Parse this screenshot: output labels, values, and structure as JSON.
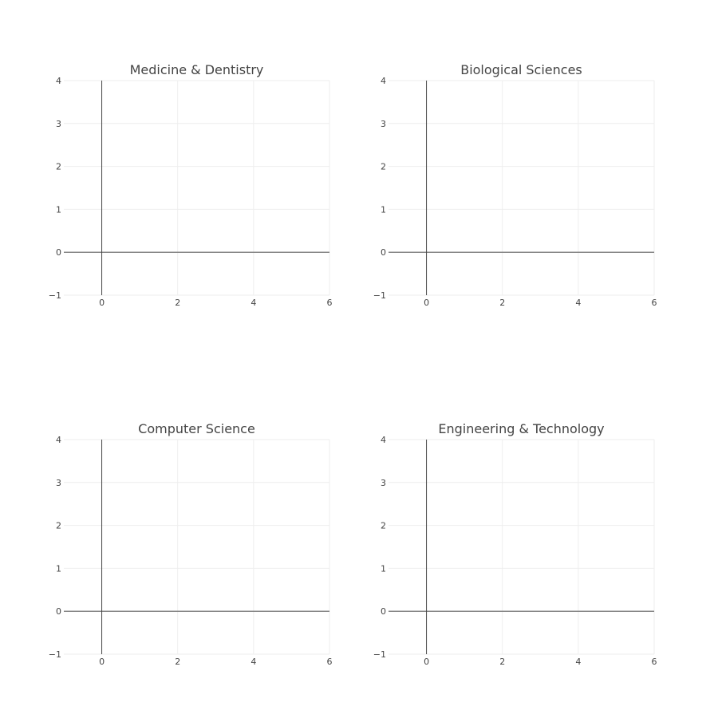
{
  "chart_data": [
    {
      "type": "scatter",
      "title": "Medicine & Dentistry",
      "xlabel": "",
      "ylabel": "",
      "xlim": [
        -1,
        6
      ],
      "ylim": [
        -1,
        4
      ],
      "x_ticks": [
        0,
        2,
        4,
        6
      ],
      "y_ticks": [
        -1,
        0,
        1,
        2,
        3,
        4
      ],
      "x_tick_labels": [
        "0",
        "2",
        "4",
        "6"
      ],
      "y_tick_labels": [
        "−1",
        "0",
        "1",
        "2",
        "3",
        "4"
      ],
      "grid": true,
      "series": []
    },
    {
      "type": "scatter",
      "title": "Biological Sciences",
      "xlabel": "",
      "ylabel": "",
      "xlim": [
        -1,
        6
      ],
      "ylim": [
        -1,
        4
      ],
      "x_ticks": [
        0,
        2,
        4,
        6
      ],
      "y_ticks": [
        -1,
        0,
        1,
        2,
        3,
        4
      ],
      "x_tick_labels": [
        "0",
        "2",
        "4",
        "6"
      ],
      "y_tick_labels": [
        "−1",
        "0",
        "1",
        "2",
        "3",
        "4"
      ],
      "grid": true,
      "series": []
    },
    {
      "type": "scatter",
      "title": "Computer Science",
      "xlabel": "",
      "ylabel": "",
      "xlim": [
        -1,
        6
      ],
      "ylim": [
        -1,
        4
      ],
      "x_ticks": [
        0,
        2,
        4,
        6
      ],
      "y_ticks": [
        -1,
        0,
        1,
        2,
        3,
        4
      ],
      "x_tick_labels": [
        "0",
        "2",
        "4",
        "6"
      ],
      "y_tick_labels": [
        "−1",
        "0",
        "1",
        "2",
        "3",
        "4"
      ],
      "grid": true,
      "series": []
    },
    {
      "type": "scatter",
      "title": "Engineering & Technology",
      "xlabel": "",
      "ylabel": "",
      "xlim": [
        -1,
        6
      ],
      "ylim": [
        -1,
        4
      ],
      "x_ticks": [
        0,
        2,
        4,
        6
      ],
      "y_ticks": [
        -1,
        0,
        1,
        2,
        3,
        4
      ],
      "x_tick_labels": [
        "0",
        "2",
        "4",
        "6"
      ],
      "y_tick_labels": [
        "−1",
        "0",
        "1",
        "2",
        "3",
        "4"
      ],
      "grid": true,
      "series": []
    }
  ]
}
